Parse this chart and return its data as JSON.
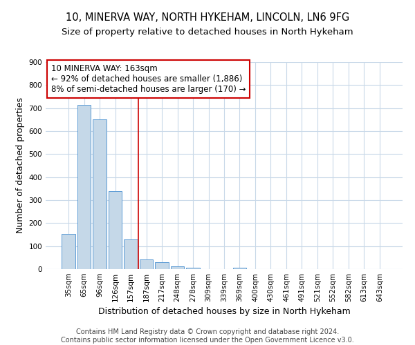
{
  "title": "10, MINERVA WAY, NORTH HYKEHAM, LINCOLN, LN6 9FG",
  "subtitle": "Size of property relative to detached houses in North Hykeham",
  "xlabel": "Distribution of detached houses by size in North Hykeham",
  "ylabel": "Number of detached properties",
  "bar_labels": [
    "35sqm",
    "65sqm",
    "96sqm",
    "126sqm",
    "157sqm",
    "187sqm",
    "217sqm",
    "248sqm",
    "278sqm",
    "309sqm",
    "339sqm",
    "369sqm",
    "400sqm",
    "430sqm",
    "461sqm",
    "491sqm",
    "521sqm",
    "552sqm",
    "582sqm",
    "613sqm",
    "643sqm"
  ],
  "bar_values": [
    152,
    715,
    652,
    340,
    130,
    42,
    30,
    13,
    5,
    0,
    0,
    5,
    0,
    0,
    0,
    0,
    0,
    0,
    0,
    0,
    0
  ],
  "bar_color": "#c5d8e8",
  "bar_edge_color": "#5b9bd5",
  "vline_x": 4.5,
  "vline_color": "#cc0000",
  "annotation_text": "10 MINERVA WAY: 163sqm\n← 92% of detached houses are smaller (1,886)\n8% of semi-detached houses are larger (170) →",
  "annotation_box_color": "#ffffff",
  "annotation_box_edge": "#cc0000",
  "ylim": [
    0,
    900
  ],
  "yticks": [
    0,
    100,
    200,
    300,
    400,
    500,
    600,
    700,
    800,
    900
  ],
  "footer": "Contains HM Land Registry data © Crown copyright and database right 2024.\nContains public sector information licensed under the Open Government Licence v3.0.",
  "bg_color": "#ffffff",
  "grid_color": "#c8d8e8",
  "title_fontsize": 10.5,
  "subtitle_fontsize": 9.5,
  "axis_label_fontsize": 9,
  "tick_fontsize": 7.5,
  "annotation_fontsize": 8.5,
  "footer_fontsize": 7
}
